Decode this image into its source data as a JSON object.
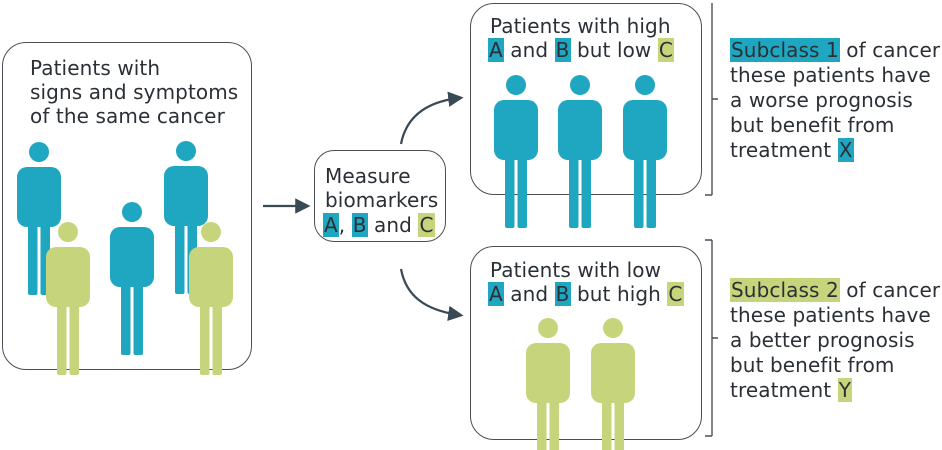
{
  "colors": {
    "blue": "#1fa6c0",
    "green": "#c6d47c",
    "line": "#3a4a55"
  },
  "left_box": {
    "lines": [
      "Patients with",
      "signs and symptoms",
      "of the same cancer"
    ]
  },
  "middle_box": {
    "line1": "Measure",
    "line2": "biomarkers",
    "a": "A",
    "sep": ",",
    "b": "B",
    "and": "and",
    "c": "C"
  },
  "top_box": {
    "line1": "Patients with high",
    "a": "A",
    "and": "and",
    "b": "B",
    "but": "but low",
    "c": "C"
  },
  "bottom_box": {
    "line1": "Patients with low",
    "a": "A",
    "and": "and",
    "b": "B",
    "but": "but high",
    "c": "C"
  },
  "subclass1": {
    "label": "Subclass 1",
    "rest": "of cancer:",
    "lines": [
      "these patients have",
      "a worse prognosis",
      "but benefit from"
    ],
    "treatment": "treatment",
    "drug": "X"
  },
  "subclass2": {
    "label": "Subclass 2",
    "rest": "of cancer:",
    "lines": [
      "these patients have",
      "a better prognosis",
      "but benefit from"
    ],
    "treatment": "treatment",
    "drug": "Y"
  }
}
